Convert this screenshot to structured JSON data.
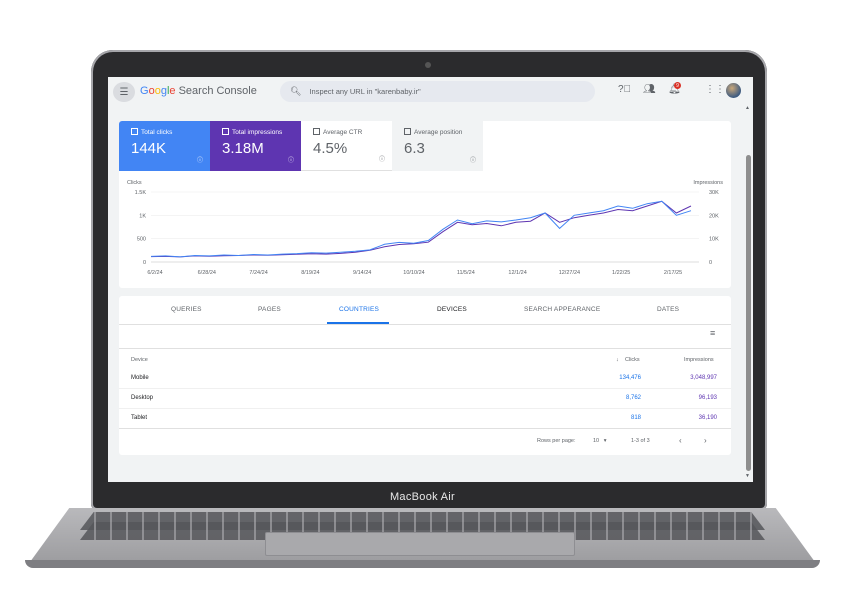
{
  "device_label": "MacBook Air",
  "header": {
    "logo_google": [
      "G",
      "o",
      "o",
      "g",
      "l",
      "e"
    ],
    "logo_product": "Search Console",
    "search_placeholder": "Inspect any URL in \"karenbaby.ir\"",
    "notification_count": "9"
  },
  "metrics": [
    {
      "label": "Total clicks",
      "value": "144K",
      "active": true,
      "color": "#4285f4"
    },
    {
      "label": "Total impressions",
      "value": "3.18M",
      "active": true,
      "color": "#5e35b1"
    },
    {
      "label": "Average CTR",
      "value": "4.5%",
      "active": false
    },
    {
      "label": "Average position",
      "value": "6.3",
      "active": false
    }
  ],
  "chart_data": {
    "type": "line",
    "left_axis": {
      "label": "Clicks",
      "ticks": [
        "1.5K",
        "1K",
        "500",
        "0"
      ],
      "range": [
        0,
        1500
      ]
    },
    "right_axis": {
      "label": "Impressions",
      "ticks": [
        "30K",
        "20K",
        "10K",
        "0"
      ],
      "range": [
        0,
        30000
      ]
    },
    "x_ticks": [
      "6/2/24",
      "6/28/24",
      "7/24/24",
      "8/19/24",
      "9/14/24",
      "10/10/24",
      "11/5/24",
      "12/1/24",
      "12/27/24",
      "1/22/25",
      "2/17/25"
    ],
    "series": [
      {
        "name": "Clicks",
        "axis": "left",
        "color": "#4285f4",
        "values": [
          120,
          130,
          110,
          140,
          130,
          150,
          140,
          160,
          150,
          170,
          180,
          200,
          190,
          210,
          230,
          260,
          380,
          420,
          400,
          460,
          700,
          900,
          820,
          880,
          860,
          900,
          950,
          1050,
          720,
          1000,
          1050,
          1100,
          1200,
          1150,
          1250,
          1300,
          1000,
          1100
        ]
      },
      {
        "name": "Impressions",
        "axis": "right",
        "color": "#5e35b1",
        "values": [
          2300,
          2400,
          2200,
          2600,
          2500,
          2700,
          2800,
          3000,
          2900,
          3100,
          3300,
          3500,
          3400,
          3700,
          4200,
          5000,
          6500,
          7500,
          7800,
          8500,
          13000,
          17000,
          16000,
          16500,
          15500,
          17000,
          17500,
          21000,
          17000,
          19000,
          20000,
          21000,
          22500,
          22000,
          24000,
          26000,
          21000,
          24000
        ]
      }
    ]
  },
  "tabs": [
    {
      "label": "QUERIES",
      "active": false
    },
    {
      "label": "PAGES",
      "active": false
    },
    {
      "label": "COUNTRIES",
      "active": true
    },
    {
      "label": "DEVICES",
      "active": false
    },
    {
      "label": "SEARCH APPEARANCE",
      "active": false
    },
    {
      "label": "DATES",
      "active": false
    }
  ],
  "table": {
    "columns": [
      "Device",
      "Clicks",
      "Impressions"
    ],
    "sort_icon": "arrow-down-icon",
    "rows": [
      {
        "device": "Mobile",
        "clicks": "134,476",
        "impressions": "3,048,997"
      },
      {
        "device": "Desktop",
        "clicks": "8,762",
        "impressions": "96,193"
      },
      {
        "device": "Tablet",
        "clicks": "818",
        "impressions": "36,190"
      }
    ]
  },
  "pagination": {
    "rows_per_page_label": "Rows per page:",
    "rows_per_page_value": "10",
    "range_text": "1-3 of 3"
  }
}
